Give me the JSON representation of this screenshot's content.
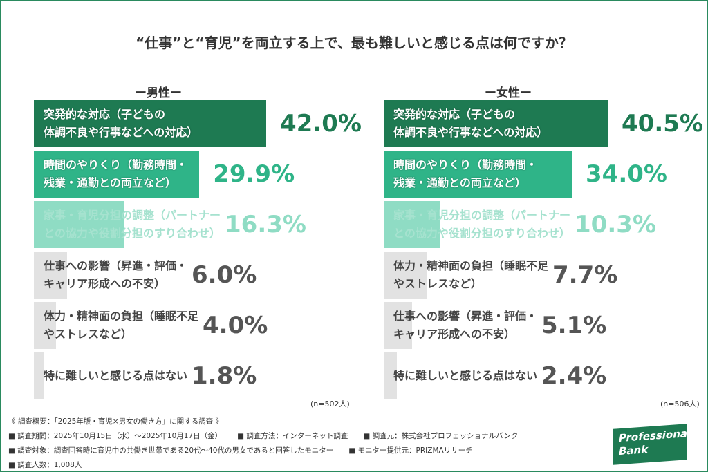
{
  "title": "“仕事”と“育児”を両立する上で、最も難しいと感じる点は何ですか？",
  "chart_data": [
    {
      "type": "bar",
      "orientation": "horizontal",
      "subtitle": "ー男性ー",
      "categories": [
        "突発的な対応（子どもの\n体調不良や行事などへの対応）",
        "時間のやりくり（勤務時間・\n残業・通勤との両立など）",
        "家事・育児分担の調整（パートナー\nとの協力や役割分担のすり合わせ）",
        "仕事への影響（昇進・評価・\nキャリア形成への不安）",
        "体力・精神面の負担（睡眠不足\nやストレスなど）",
        "特に難しいと感じる点はない"
      ],
      "values": [
        42.0,
        29.9,
        16.3,
        6.0,
        4.0,
        1.8
      ],
      "value_labels": [
        "42.0%",
        "29.9%",
        "16.3%",
        "6.0%",
        "4.0%",
        "1.8%"
      ],
      "colors": [
        "#1e7a52",
        "#2fb488",
        "#8fdcc4",
        "#e2e2e2",
        "#e2e2e2",
        "#e2e2e2"
      ],
      "label_colors": [
        "#1e7a52",
        "#2fb488",
        "#8fdcc4",
        "#555555",
        "#555555",
        "#555555"
      ],
      "text_colors": [
        "#ffffff",
        "#ffffff",
        "#a6e2cf",
        "#444444",
        "#444444",
        "#444444"
      ],
      "xlim": [
        0,
        50
      ],
      "note": "(n=502人)"
    },
    {
      "type": "bar",
      "orientation": "horizontal",
      "subtitle": "ー女性ー",
      "categories": [
        "突発的な対応（子どもの\n体調不良や行事などへの対応）",
        "時間のやりくり（勤務時間・\n残業・通勤との両立など）",
        "家事・育児分担の調整（パートナー\nとの協力や役割分担のすり合わせ）",
        "体力・精神面の負担（睡眠不足\nやストレスなど）",
        "仕事への影響（昇進・評価・\nキャリア形成への不安）",
        "特に難しいと感じる点はない"
      ],
      "values": [
        40.5,
        34.0,
        10.3,
        7.7,
        5.1,
        2.4
      ],
      "value_labels": [
        "40.5%",
        "34.0%",
        "10.3%",
        "7.7%",
        "5.1%",
        "2.4%"
      ],
      "colors": [
        "#1e7a52",
        "#2fb488",
        "#8fdcc4",
        "#e2e2e2",
        "#e2e2e2",
        "#e2e2e2"
      ],
      "label_colors": [
        "#1e7a52",
        "#2fb488",
        "#8fdcc4",
        "#555555",
        "#555555",
        "#555555"
      ],
      "text_colors": [
        "#ffffff",
        "#ffffff",
        "#a6e2cf",
        "#444444",
        "#444444",
        "#444444"
      ],
      "xlim": [
        0,
        50
      ],
      "note": "(n=506人)"
    }
  ],
  "footer": {
    "heading": "《 調査概要：「2025年版・育児×男女の働き方」に関する調査 》",
    "rows": [
      [
        "■ 調査期間：2025年10月15日（水）～2025年10月17日（金）",
        "■ 調査方法：インターネット調査",
        "■ 調査元：株式会社プロフェッショナルバンク"
      ],
      [
        "■ 調査対象：調査回答時に育児中の共働き世帯である20代～40代の男女であると回答したモニター",
        "■ モニター提供元：PRIZMAリサーチ"
      ],
      [
        "■ 調査人数：1,008人"
      ]
    ]
  },
  "logo": [
    "Professional",
    "Bank"
  ]
}
